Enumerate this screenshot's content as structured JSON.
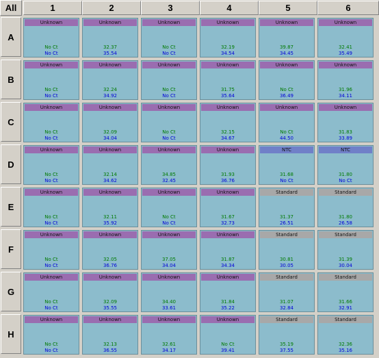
{
  "all_label": "All",
  "columns": [
    "1",
    "2",
    "3",
    "4",
    "5",
    "6"
  ],
  "rows": [
    "A",
    "B",
    "C",
    "D",
    "E",
    "F",
    "G",
    "H"
  ],
  "colors": {
    "unknown": "#9a6db0",
    "ntc": "#7080c8",
    "standard": "#a8a8a8",
    "well": "#8cbccc",
    "ct_value": "#007a00",
    "quantity": "#0000d8"
  },
  "wells": {
    "A": [
      {
        "type": "Unknown",
        "v1": "No Ct",
        "v2": "No Ct"
      },
      {
        "type": "Unknown",
        "v1": "32.37",
        "v2": "35.54"
      },
      {
        "type": "Unknown",
        "v1": "No Ct",
        "v2": "No Ct"
      },
      {
        "type": "Unknown",
        "v1": "32.19",
        "v2": "34.54"
      },
      {
        "type": "Unknown",
        "v1": "39.87",
        "v2": "34.45"
      },
      {
        "type": "Unknown",
        "v1": "32.41",
        "v2": "35.49"
      }
    ],
    "B": [
      {
        "type": "Unknown",
        "v1": "No Ct",
        "v2": "No Ct"
      },
      {
        "type": "Unknown",
        "v1": "32.24",
        "v2": "34.92"
      },
      {
        "type": "Unknown",
        "v1": "No Ct",
        "v2": "No Ct"
      },
      {
        "type": "Unknown",
        "v1": "31.75",
        "v2": "35.64"
      },
      {
        "type": "Unknown",
        "v1": "No Ct",
        "v2": "36.49"
      },
      {
        "type": "Unknown",
        "v1": "31.96",
        "v2": "34.11"
      }
    ],
    "C": [
      {
        "type": "Unknown",
        "v1": "No Ct",
        "v2": "No Ct"
      },
      {
        "type": "Unknown",
        "v1": "32.09",
        "v2": "34.04"
      },
      {
        "type": "Unknown",
        "v1": "No Ct",
        "v2": "No Ct"
      },
      {
        "type": "Unknown",
        "v1": "32.15",
        "v2": "34.67"
      },
      {
        "type": "Unknown",
        "v1": "No Ct",
        "v2": "44.50"
      },
      {
        "type": "Unknown",
        "v1": "31.83",
        "v2": "33.89"
      }
    ],
    "D": [
      {
        "type": "Unknown",
        "v1": "No Ct",
        "v2": "No Ct"
      },
      {
        "type": "Unknown",
        "v1": "32.14",
        "v2": "34.62"
      },
      {
        "type": "Unknown",
        "v1": "34.85",
        "v2": "32.45"
      },
      {
        "type": "Unknown",
        "v1": "31.93",
        "v2": "36.76"
      },
      {
        "type": "NTC",
        "v1": "31.68",
        "v2": "No Ct"
      },
      {
        "type": "NTC",
        "v1": "31.80",
        "v2": "No Ct"
      }
    ],
    "E": [
      {
        "type": "Unknown",
        "v1": "No Ct",
        "v2": "No Ct"
      },
      {
        "type": "Unknown",
        "v1": "32.11",
        "v2": "35.92"
      },
      {
        "type": "Unknown",
        "v1": "No Ct",
        "v2": "No Ct"
      },
      {
        "type": "Unknown",
        "v1": "31.67",
        "v2": "32.73"
      },
      {
        "type": "Standard",
        "v1": "31.37",
        "v2": "26.51"
      },
      {
        "type": "Standard",
        "v1": "31.80",
        "v2": "26.58"
      }
    ],
    "F": [
      {
        "type": "Unknown",
        "v1": "No Ct",
        "v2": "No Ct"
      },
      {
        "type": "Unknown",
        "v1": "32.05",
        "v2": "36.76"
      },
      {
        "type": "Unknown",
        "v1": "37.05",
        "v2": "34.04"
      },
      {
        "type": "Unknown",
        "v1": "31.87",
        "v2": "34.34"
      },
      {
        "type": "Standard",
        "v1": "30.81",
        "v2": "30.05"
      },
      {
        "type": "Standard",
        "v1": "31.39",
        "v2": "30.04"
      }
    ],
    "G": [
      {
        "type": "Unknown",
        "v1": "No Ct",
        "v2": "No Ct"
      },
      {
        "type": "Unknown",
        "v1": "32.09",
        "v2": "35.55"
      },
      {
        "type": "Unknown",
        "v1": "34.40",
        "v2": "33.61"
      },
      {
        "type": "Unknown",
        "v1": "31.84",
        "v2": "35.22"
      },
      {
        "type": "Standard",
        "v1": "31.07",
        "v2": "32.84"
      },
      {
        "type": "Standard",
        "v1": "31.66",
        "v2": "32.91"
      }
    ],
    "H": [
      {
        "type": "Unknown",
        "v1": "No Ct",
        "v2": "No Ct"
      },
      {
        "type": "Unknown",
        "v1": "32.13",
        "v2": "36.55"
      },
      {
        "type": "Unknown",
        "v1": "32.61",
        "v2": "34.17"
      },
      {
        "type": "Unknown",
        "v1": "No Ct",
        "v2": "39.41"
      },
      {
        "type": "Standard",
        "v1": "35.19",
        "v2": "37.55"
      },
      {
        "type": "Standard",
        "v1": "32.36",
        "v2": "35.16"
      }
    ]
  }
}
